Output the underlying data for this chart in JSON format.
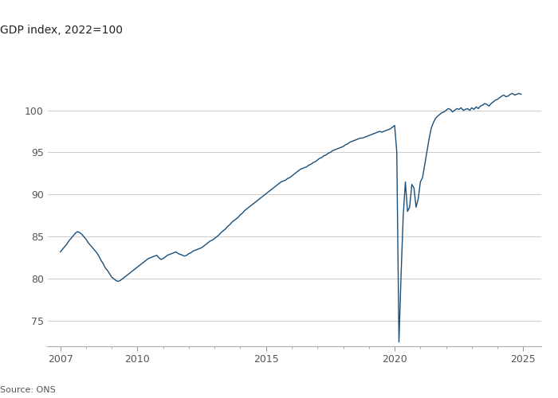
{
  "title": "GDP index, 2022=100",
  "source": "Source: ONS",
  "line_color": "#1a4f7a",
  "background_color": "#ffffff",
  "grid_color": "#cccccc",
  "ylim": [
    72,
    106
  ],
  "yticks": [
    75,
    80,
    85,
    90,
    95,
    100
  ],
  "xlabel_years": [
    2007,
    2010,
    2015,
    2020,
    2025
  ],
  "xlim": [
    2006.5,
    2025.7
  ],
  "data": [
    [
      2007.0,
      83.2
    ],
    [
      2007.083,
      83.5
    ],
    [
      2007.167,
      83.8
    ],
    [
      2007.25,
      84.1
    ],
    [
      2007.333,
      84.5
    ],
    [
      2007.417,
      84.8
    ],
    [
      2007.5,
      85.1
    ],
    [
      2007.583,
      85.4
    ],
    [
      2007.667,
      85.6
    ],
    [
      2007.75,
      85.5
    ],
    [
      2007.833,
      85.3
    ],
    [
      2007.917,
      85.0
    ],
    [
      2008.0,
      84.7
    ],
    [
      2008.083,
      84.3
    ],
    [
      2008.167,
      84.0
    ],
    [
      2008.25,
      83.7
    ],
    [
      2008.333,
      83.4
    ],
    [
      2008.417,
      83.1
    ],
    [
      2008.5,
      82.7
    ],
    [
      2008.583,
      82.2
    ],
    [
      2008.667,
      81.8
    ],
    [
      2008.75,
      81.3
    ],
    [
      2008.833,
      81.0
    ],
    [
      2008.917,
      80.6
    ],
    [
      2009.0,
      80.2
    ],
    [
      2009.083,
      80.0
    ],
    [
      2009.167,
      79.8
    ],
    [
      2009.25,
      79.7
    ],
    [
      2009.333,
      79.8
    ],
    [
      2009.417,
      80.0
    ],
    [
      2009.5,
      80.2
    ],
    [
      2009.583,
      80.4
    ],
    [
      2009.667,
      80.6
    ],
    [
      2009.75,
      80.8
    ],
    [
      2009.833,
      81.0
    ],
    [
      2009.917,
      81.2
    ],
    [
      2010.0,
      81.4
    ],
    [
      2010.083,
      81.6
    ],
    [
      2010.167,
      81.8
    ],
    [
      2010.25,
      82.0
    ],
    [
      2010.333,
      82.2
    ],
    [
      2010.417,
      82.4
    ],
    [
      2010.5,
      82.5
    ],
    [
      2010.583,
      82.6
    ],
    [
      2010.667,
      82.7
    ],
    [
      2010.75,
      82.8
    ],
    [
      2010.833,
      82.5
    ],
    [
      2010.917,
      82.3
    ],
    [
      2011.0,
      82.4
    ],
    [
      2011.083,
      82.6
    ],
    [
      2011.167,
      82.8
    ],
    [
      2011.25,
      82.9
    ],
    [
      2011.333,
      83.0
    ],
    [
      2011.417,
      83.1
    ],
    [
      2011.5,
      83.2
    ],
    [
      2011.583,
      83.0
    ],
    [
      2011.667,
      82.9
    ],
    [
      2011.75,
      82.8
    ],
    [
      2011.833,
      82.7
    ],
    [
      2011.917,
      82.8
    ],
    [
      2012.0,
      83.0
    ],
    [
      2012.083,
      83.1
    ],
    [
      2012.167,
      83.3
    ],
    [
      2012.25,
      83.4
    ],
    [
      2012.333,
      83.5
    ],
    [
      2012.417,
      83.6
    ],
    [
      2012.5,
      83.7
    ],
    [
      2012.583,
      83.9
    ],
    [
      2012.667,
      84.1
    ],
    [
      2012.75,
      84.3
    ],
    [
      2012.833,
      84.5
    ],
    [
      2012.917,
      84.6
    ],
    [
      2013.0,
      84.8
    ],
    [
      2013.083,
      85.0
    ],
    [
      2013.167,
      85.2
    ],
    [
      2013.25,
      85.5
    ],
    [
      2013.333,
      85.7
    ],
    [
      2013.417,
      85.9
    ],
    [
      2013.5,
      86.2
    ],
    [
      2013.583,
      86.4
    ],
    [
      2013.667,
      86.7
    ],
    [
      2013.75,
      86.9
    ],
    [
      2013.833,
      87.1
    ],
    [
      2013.917,
      87.3
    ],
    [
      2014.0,
      87.6
    ],
    [
      2014.083,
      87.8
    ],
    [
      2014.167,
      88.1
    ],
    [
      2014.25,
      88.3
    ],
    [
      2014.333,
      88.5
    ],
    [
      2014.417,
      88.7
    ],
    [
      2014.5,
      88.9
    ],
    [
      2014.583,
      89.1
    ],
    [
      2014.667,
      89.3
    ],
    [
      2014.75,
      89.5
    ],
    [
      2014.833,
      89.7
    ],
    [
      2014.917,
      89.9
    ],
    [
      2015.0,
      90.1
    ],
    [
      2015.083,
      90.3
    ],
    [
      2015.167,
      90.5
    ],
    [
      2015.25,
      90.7
    ],
    [
      2015.333,
      90.9
    ],
    [
      2015.417,
      91.1
    ],
    [
      2015.5,
      91.3
    ],
    [
      2015.583,
      91.5
    ],
    [
      2015.667,
      91.6
    ],
    [
      2015.75,
      91.7
    ],
    [
      2015.833,
      91.9
    ],
    [
      2015.917,
      92.0
    ],
    [
      2016.0,
      92.2
    ],
    [
      2016.083,
      92.4
    ],
    [
      2016.167,
      92.6
    ],
    [
      2016.25,
      92.8
    ],
    [
      2016.333,
      93.0
    ],
    [
      2016.417,
      93.1
    ],
    [
      2016.5,
      93.2
    ],
    [
      2016.583,
      93.3
    ],
    [
      2016.667,
      93.5
    ],
    [
      2016.75,
      93.6
    ],
    [
      2016.833,
      93.8
    ],
    [
      2016.917,
      93.9
    ],
    [
      2017.0,
      94.1
    ],
    [
      2017.083,
      94.3
    ],
    [
      2017.167,
      94.4
    ],
    [
      2017.25,
      94.6
    ],
    [
      2017.333,
      94.7
    ],
    [
      2017.417,
      94.9
    ],
    [
      2017.5,
      95.0
    ],
    [
      2017.583,
      95.2
    ],
    [
      2017.667,
      95.3
    ],
    [
      2017.75,
      95.4
    ],
    [
      2017.833,
      95.5
    ],
    [
      2017.917,
      95.6
    ],
    [
      2018.0,
      95.7
    ],
    [
      2018.083,
      95.9
    ],
    [
      2018.167,
      96.0
    ],
    [
      2018.25,
      96.2
    ],
    [
      2018.333,
      96.3
    ],
    [
      2018.417,
      96.4
    ],
    [
      2018.5,
      96.5
    ],
    [
      2018.583,
      96.6
    ],
    [
      2018.667,
      96.7
    ],
    [
      2018.75,
      96.7
    ],
    [
      2018.833,
      96.8
    ],
    [
      2018.917,
      96.9
    ],
    [
      2019.0,
      97.0
    ],
    [
      2019.083,
      97.1
    ],
    [
      2019.167,
      97.2
    ],
    [
      2019.25,
      97.3
    ],
    [
      2019.333,
      97.4
    ],
    [
      2019.417,
      97.5
    ],
    [
      2019.5,
      97.4
    ],
    [
      2019.583,
      97.5
    ],
    [
      2019.667,
      97.6
    ],
    [
      2019.75,
      97.7
    ],
    [
      2019.833,
      97.8
    ],
    [
      2019.917,
      98.0
    ],
    [
      2020.0,
      98.2
    ],
    [
      2020.083,
      95.0
    ],
    [
      2020.167,
      72.5
    ],
    [
      2020.25,
      80.5
    ],
    [
      2020.333,
      87.5
    ],
    [
      2020.417,
      91.5
    ],
    [
      2020.5,
      88.0
    ],
    [
      2020.583,
      88.5
    ],
    [
      2020.667,
      91.2
    ],
    [
      2020.75,
      90.8
    ],
    [
      2020.833,
      88.5
    ],
    [
      2020.917,
      89.5
    ],
    [
      2021.0,
      91.5
    ],
    [
      2021.083,
      92.0
    ],
    [
      2021.167,
      93.5
    ],
    [
      2021.25,
      95.0
    ],
    [
      2021.333,
      96.5
    ],
    [
      2021.417,
      97.8
    ],
    [
      2021.5,
      98.5
    ],
    [
      2021.583,
      99.0
    ],
    [
      2021.667,
      99.3
    ],
    [
      2021.75,
      99.5
    ],
    [
      2021.833,
      99.7
    ],
    [
      2021.917,
      99.8
    ],
    [
      2022.0,
      100.0
    ],
    [
      2022.083,
      100.2
    ],
    [
      2022.167,
      100.1
    ],
    [
      2022.25,
      99.8
    ],
    [
      2022.333,
      100.0
    ],
    [
      2022.417,
      100.2
    ],
    [
      2022.5,
      100.1
    ],
    [
      2022.583,
      100.3
    ],
    [
      2022.667,
      100.0
    ],
    [
      2022.75,
      100.1
    ],
    [
      2022.833,
      100.2
    ],
    [
      2022.917,
      100.0
    ],
    [
      2023.0,
      100.3
    ],
    [
      2023.083,
      100.1
    ],
    [
      2023.167,
      100.4
    ],
    [
      2023.25,
      100.2
    ],
    [
      2023.333,
      100.5
    ],
    [
      2023.417,
      100.6
    ],
    [
      2023.5,
      100.8
    ],
    [
      2023.583,
      100.7
    ],
    [
      2023.667,
      100.5
    ],
    [
      2023.75,
      100.8
    ],
    [
      2023.833,
      101.0
    ],
    [
      2023.917,
      101.2
    ],
    [
      2024.0,
      101.3
    ],
    [
      2024.083,
      101.5
    ],
    [
      2024.167,
      101.7
    ],
    [
      2024.25,
      101.8
    ],
    [
      2024.333,
      101.6
    ],
    [
      2024.417,
      101.7
    ],
    [
      2024.5,
      101.9
    ],
    [
      2024.583,
      102.0
    ],
    [
      2024.667,
      101.8
    ],
    [
      2024.75,
      101.9
    ],
    [
      2024.833,
      102.0
    ],
    [
      2024.917,
      101.9
    ]
  ]
}
